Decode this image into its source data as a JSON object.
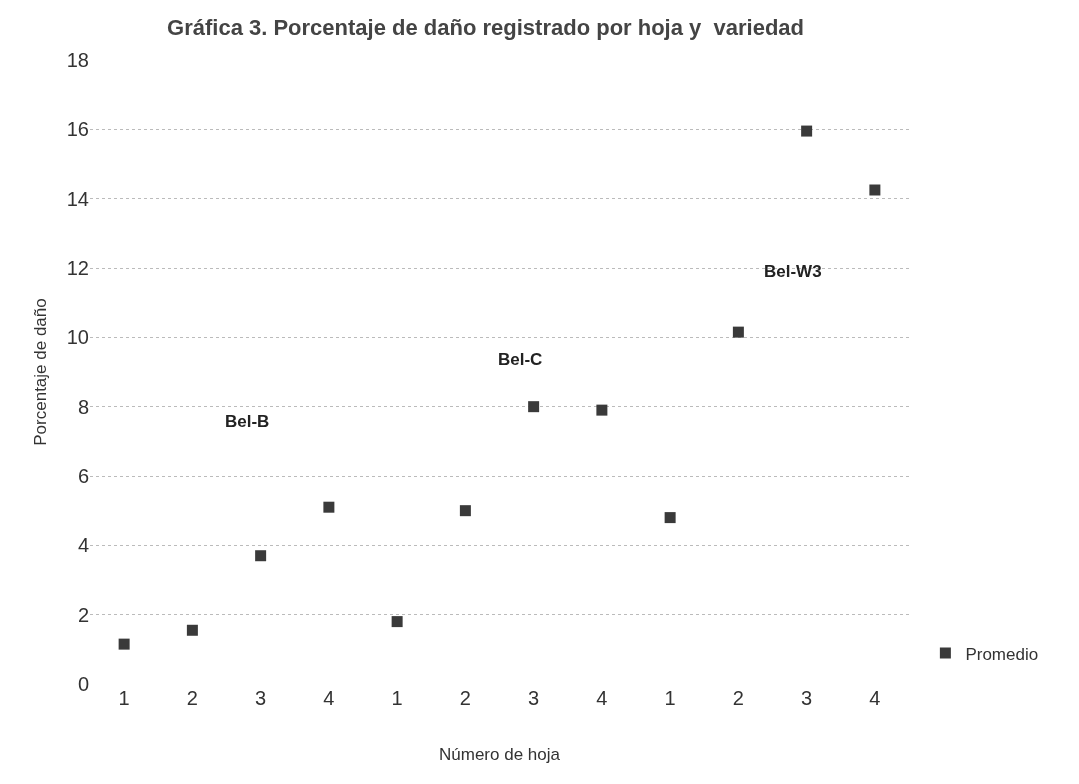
{
  "chart_data": {
    "type": "scatter",
    "title": "Gráfica 3. Porcentaje de daño registrado por hoja y  variedad",
    "xlabel": "Número de hoja",
    "ylabel": "Porcentaje de daño",
    "categories": [
      "1",
      "2",
      "3",
      "4",
      "1",
      "2",
      "3",
      "4",
      "1",
      "2",
      "3",
      "4"
    ],
    "series": [
      {
        "name": "Promedio",
        "color": "#3a3a3a",
        "values": [
          1.15,
          1.55,
          3.7,
          5.1,
          1.8,
          5.0,
          8.0,
          7.9,
          4.8,
          10.15,
          15.95,
          14.25
        ]
      }
    ],
    "annotations": [
      "Bel-B",
      "Bel-C",
      "Bel-W3"
    ],
    "ylim": [
      0,
      18
    ],
    "yticks": [
      0,
      2,
      4,
      6,
      8,
      10,
      12,
      14,
      16,
      18
    ],
    "grid": "y",
    "legend": "bottom right",
    "marker": "square"
  }
}
